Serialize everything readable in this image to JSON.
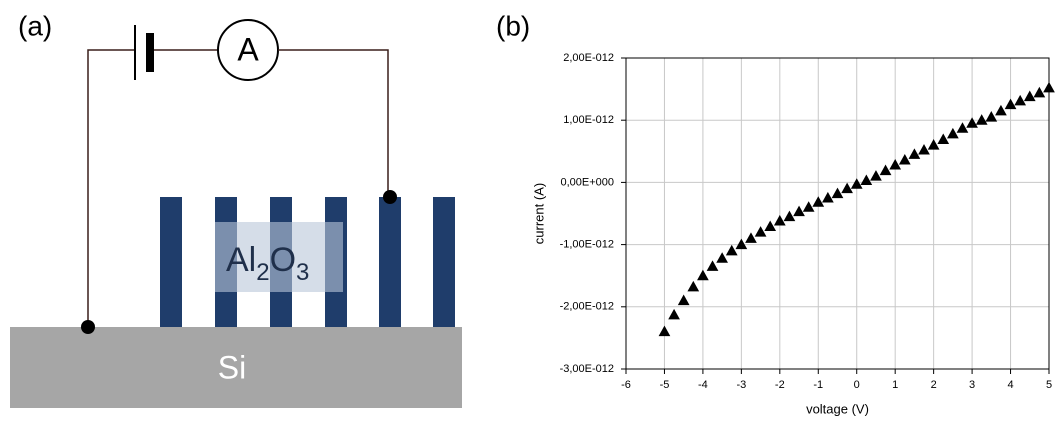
{
  "panels": [
    "(a)",
    "(b)"
  ],
  "diagram": {
    "meter": "A",
    "material": [
      "Al",
      "2",
      "O",
      "3"
    ],
    "substrate": "Si"
  },
  "chart_data": {
    "type": "scatter",
    "xlabel": "voltage (V)",
    "ylabel": "current (A)",
    "x": [
      -5,
      -4.75,
      -4.5,
      -4.25,
      -4,
      -3.75,
      -3.5,
      -3.25,
      -3,
      -2.75,
      -2.5,
      -2.25,
      -2,
      -1.75,
      -1.5,
      -1.25,
      -1,
      -0.75,
      -0.5,
      -0.25,
      0,
      0.25,
      0.5,
      0.75,
      1,
      1.25,
      1.5,
      1.75,
      2,
      2.25,
      2.5,
      2.75,
      3,
      3.25,
      3.5,
      3.75,
      4,
      4.25,
      4.5,
      4.75,
      5
    ],
    "values": [
      -2.4e-12,
      -2.13e-12,
      -1.9e-12,
      -1.68e-12,
      -1.5e-12,
      -1.35e-12,
      -1.22e-12,
      -1.1e-12,
      -1e-12,
      -9e-13,
      -8e-13,
      -7.1e-13,
      -6.2e-13,
      -5.5e-13,
      -4.7e-13,
      -4e-13,
      -3.2e-13,
      -2.5e-13,
      -1.8e-13,
      -1e-13,
      -3e-14,
      3e-14,
      1e-13,
      1.9e-13,
      2.8e-13,
      3.6e-13,
      4.5e-13,
      5.2e-13,
      6e-13,
      6.9e-13,
      7.8e-13,
      8.7e-13,
      9.5e-13,
      1e-12,
      1.05e-12,
      1.15e-12,
      1.25e-12,
      1.31e-12,
      1.38e-12,
      1.44e-12,
      1.52e-12
    ],
    "color": "#000000",
    "xlim": [
      -6,
      5
    ],
    "xticks": [
      -6,
      -5,
      -4,
      -3,
      -2,
      -1,
      0,
      1,
      2,
      3,
      4,
      5
    ],
    "ylim": [
      -3e-12,
      2e-12
    ],
    "yticks": [
      {
        "value": -3e-12,
        "label": "-3,00E-012"
      },
      {
        "value": -2e-12,
        "label": "-2,00E-012"
      },
      {
        "value": -1e-12,
        "label": "-1,00E-012"
      },
      {
        "value": 0,
        "label": "0,00E+000"
      },
      {
        "value": 1e-12,
        "label": "1,00E-012"
      },
      {
        "value": 2e-12,
        "label": "2,00E-012"
      }
    ],
    "grid": true
  }
}
